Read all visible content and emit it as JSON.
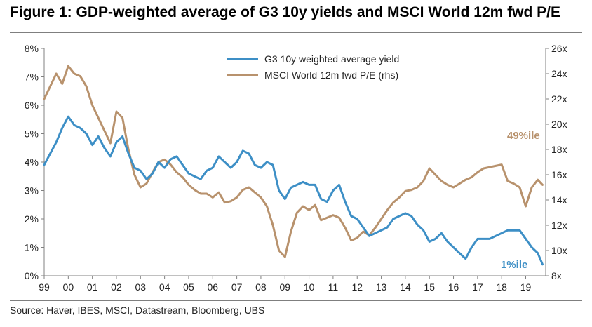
{
  "title": "Figure 1: GDP-weighted average of G3 10y yields and MSCI World 12m fwd P/E",
  "source": "Source:  Haver, IBES, MSCI, Datastream, Bloomberg, UBS",
  "colors": {
    "yield": "#3d8fc6",
    "pe": "#b8926d",
    "axis": "#808080",
    "grid": "#d9d9d9"
  },
  "chart_data": {
    "type": "line",
    "title": "Figure 1: GDP-weighted average of G3 10y yields and MSCI World 12m fwd P/E",
    "xlabel": "",
    "ylabel": "",
    "ylim": [
      0,
      8
    ],
    "y2lim": [
      8,
      26
    ],
    "xlim": [
      1999.0,
      2019.83
    ],
    "grid": false,
    "legend": "top-center",
    "x_ticks": [
      "99",
      "00",
      "01",
      "02",
      "03",
      "04",
      "05",
      "06",
      "07",
      "08",
      "09",
      "10",
      "11",
      "12",
      "13",
      "14",
      "15",
      "16",
      "17",
      "18",
      "19"
    ],
    "y_ticks": [
      "0%",
      "1%",
      "2%",
      "3%",
      "4%",
      "5%",
      "6%",
      "7%",
      "8%"
    ],
    "y2_ticks": [
      "8x",
      "10x",
      "12x",
      "14x",
      "16x",
      "18x",
      "20x",
      "22x",
      "24x",
      "26x"
    ],
    "series": [
      {
        "name": "G3 10y weighted average yield",
        "axis": "left",
        "color": "#3d8fc6",
        "x": [
          1999.0,
          1999.25,
          1999.5,
          1999.75,
          2000.0,
          2000.25,
          2000.5,
          2000.75,
          2001.0,
          2001.25,
          2001.5,
          2001.75,
          2002.0,
          2002.25,
          2002.5,
          2002.75,
          2003.0,
          2003.25,
          2003.5,
          2003.75,
          2004.0,
          2004.25,
          2004.5,
          2004.75,
          2005.0,
          2005.25,
          2005.5,
          2005.75,
          2006.0,
          2006.25,
          2006.5,
          2006.75,
          2007.0,
          2007.25,
          2007.5,
          2007.75,
          2008.0,
          2008.25,
          2008.5,
          2008.75,
          2009.0,
          2009.25,
          2009.5,
          2009.75,
          2010.0,
          2010.25,
          2010.5,
          2010.75,
          2011.0,
          2011.25,
          2011.5,
          2011.75,
          2012.0,
          2012.25,
          2012.5,
          2012.75,
          2013.0,
          2013.25,
          2013.5,
          2013.75,
          2014.0,
          2014.25,
          2014.5,
          2014.75,
          2015.0,
          2015.25,
          2015.5,
          2015.75,
          2016.0,
          2016.25,
          2016.5,
          2016.75,
          2017.0,
          2017.25,
          2017.5,
          2017.75,
          2018.0,
          2018.25,
          2018.5,
          2018.75,
          2019.0,
          2019.25,
          2019.5,
          2019.7
        ],
        "values": [
          3.9,
          4.3,
          4.7,
          5.2,
          5.6,
          5.3,
          5.2,
          5.0,
          4.6,
          4.9,
          4.5,
          4.2,
          4.7,
          4.9,
          4.3,
          3.8,
          3.7,
          3.4,
          3.6,
          4.0,
          3.8,
          4.1,
          4.2,
          3.9,
          3.6,
          3.5,
          3.4,
          3.7,
          3.8,
          4.2,
          4.0,
          3.8,
          4.0,
          4.4,
          4.3,
          3.9,
          3.8,
          4.0,
          3.9,
          3.0,
          2.7,
          3.1,
          3.2,
          3.3,
          3.2,
          3.2,
          2.7,
          2.6,
          3.0,
          3.2,
          2.6,
          2.1,
          2.0,
          1.7,
          1.4,
          1.5,
          1.6,
          1.7,
          2.0,
          2.1,
          2.2,
          2.1,
          1.8,
          1.6,
          1.2,
          1.3,
          1.5,
          1.2,
          1.0,
          0.8,
          0.6,
          1.0,
          1.3,
          1.3,
          1.3,
          1.4,
          1.5,
          1.6,
          1.6,
          1.6,
          1.3,
          1.0,
          0.8,
          0.4
        ]
      },
      {
        "name": "MSCI World 12m fwd P/E (rhs)",
        "axis": "right",
        "color": "#b8926d",
        "x": [
          1999.0,
          1999.25,
          1999.5,
          1999.75,
          2000.0,
          2000.25,
          2000.5,
          2000.75,
          2001.0,
          2001.25,
          2001.5,
          2001.75,
          2002.0,
          2002.25,
          2002.5,
          2002.75,
          2003.0,
          2003.25,
          2003.5,
          2003.75,
          2004.0,
          2004.25,
          2004.5,
          2004.75,
          2005.0,
          2005.25,
          2005.5,
          2005.75,
          2006.0,
          2006.25,
          2006.5,
          2006.75,
          2007.0,
          2007.25,
          2007.5,
          2007.75,
          2008.0,
          2008.25,
          2008.5,
          2008.75,
          2009.0,
          2009.25,
          2009.5,
          2009.75,
          2010.0,
          2010.25,
          2010.5,
          2010.75,
          2011.0,
          2011.25,
          2011.5,
          2011.75,
          2012.0,
          2012.25,
          2012.5,
          2012.75,
          2013.0,
          2013.25,
          2013.5,
          2013.75,
          2014.0,
          2014.25,
          2014.5,
          2014.75,
          2015.0,
          2015.25,
          2015.5,
          2015.75,
          2016.0,
          2016.25,
          2016.5,
          2016.75,
          2017.0,
          2017.25,
          2017.5,
          2017.75,
          2018.0,
          2018.25,
          2018.5,
          2018.75,
          2019.0,
          2019.25,
          2019.5,
          2019.7
        ],
        "values": [
          22.0,
          23.0,
          24.0,
          23.2,
          24.6,
          24.0,
          23.8,
          23.0,
          21.5,
          20.5,
          19.5,
          18.5,
          21.0,
          20.5,
          18.0,
          16.0,
          15.0,
          15.3,
          16.2,
          17.0,
          17.2,
          16.8,
          16.2,
          15.8,
          15.2,
          14.8,
          14.5,
          14.5,
          14.2,
          14.6,
          13.8,
          13.9,
          14.2,
          14.8,
          15.0,
          14.6,
          14.2,
          13.5,
          12.0,
          10.0,
          9.5,
          11.5,
          13.0,
          13.5,
          13.2,
          13.6,
          12.4,
          12.6,
          12.8,
          12.6,
          11.8,
          10.8,
          11.0,
          11.5,
          11.2,
          11.8,
          12.5,
          13.2,
          13.8,
          14.2,
          14.7,
          14.8,
          15.0,
          15.5,
          16.5,
          16.0,
          15.5,
          15.2,
          15.0,
          15.3,
          15.6,
          15.8,
          16.2,
          16.5,
          16.6,
          16.7,
          16.8,
          15.5,
          15.3,
          15.0,
          13.5,
          15.0,
          15.6,
          15.2
        ]
      }
    ],
    "annotations": [
      {
        "text": "49%ile",
        "series": 1,
        "color": "#b8926d"
      },
      {
        "text": "1%ile",
        "series": 0,
        "color": "#3d8fc6"
      }
    ]
  }
}
